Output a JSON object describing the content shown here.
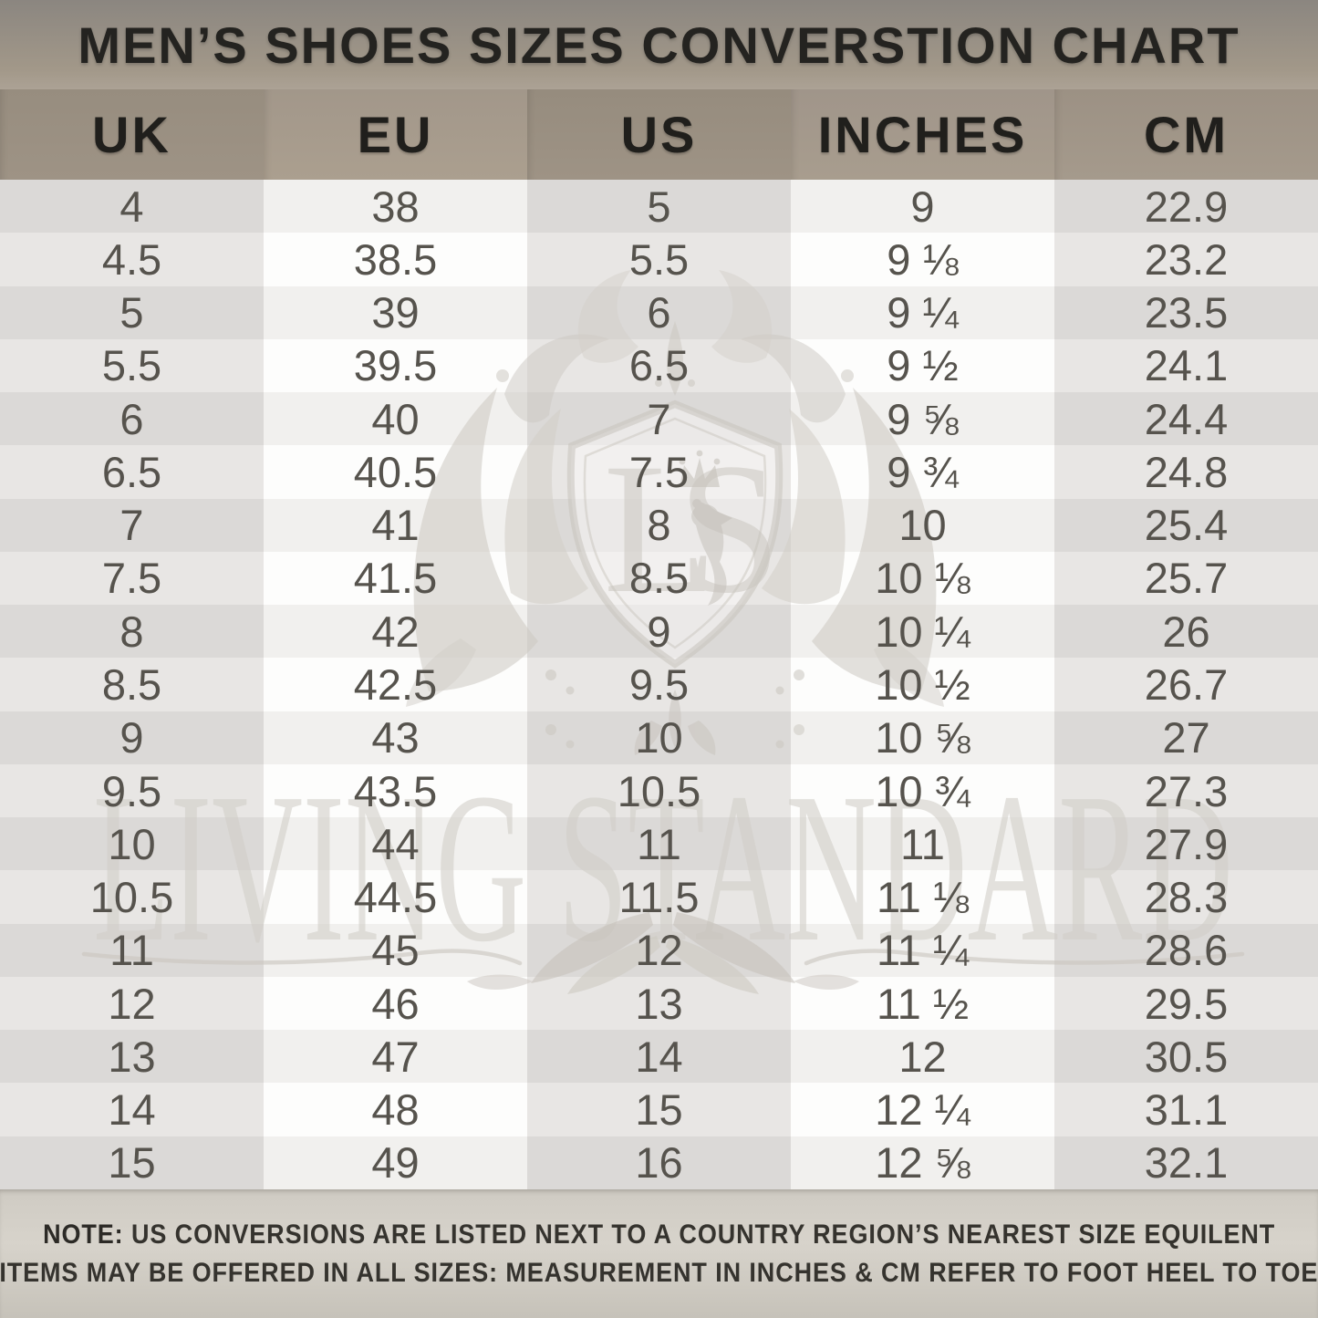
{
  "title": "MEN’S SHOES SIZES CONVERSTION CHART",
  "watermark": {
    "monogram": "LS",
    "brand": "LIVING STANDARD"
  },
  "chart_data": {
    "type": "table",
    "title": "MEN’S SHOES SIZES CONVERSTION CHART",
    "columns": [
      "UK",
      "EU",
      "US",
      "INCHES",
      "CM"
    ],
    "rows": [
      [
        "4",
        "38",
        "5",
        "9",
        "22.9"
      ],
      [
        "4.5",
        "38.5",
        "5.5",
        "9 ⅛",
        "23.2"
      ],
      [
        "5",
        "39",
        "6",
        "9 ¼",
        "23.5"
      ],
      [
        "5.5",
        "39.5",
        "6.5",
        "9 ½",
        "24.1"
      ],
      [
        "6",
        "40",
        "7",
        "9 ⅝",
        "24.4"
      ],
      [
        "6.5",
        "40.5",
        "7.5",
        "9 ¾",
        "24.8"
      ],
      [
        "7",
        "41",
        "8",
        "10",
        "25.4"
      ],
      [
        "7.5",
        "41.5",
        "8.5",
        "10 ⅛",
        "25.7"
      ],
      [
        "8",
        "42",
        "9",
        "10 ¼",
        "26"
      ],
      [
        "8.5",
        "42.5",
        "9.5",
        "10 ½",
        "26.7"
      ],
      [
        "9",
        "43",
        "10",
        "10 ⅝",
        "27"
      ],
      [
        "9.5",
        "43.5",
        "10.5",
        "10 ¾",
        "27.3"
      ],
      [
        "10",
        "44",
        "11",
        "11",
        "27.9"
      ],
      [
        "10.5",
        "44.5",
        "11.5",
        "11 ⅛",
        "28.3"
      ],
      [
        "11",
        "45",
        "12",
        "11 ¼",
        "28.6"
      ],
      [
        "12",
        "46",
        "13",
        "11 ½",
        "29.5"
      ],
      [
        "13",
        "47",
        "14",
        "12",
        "30.5"
      ],
      [
        "14",
        "48",
        "15",
        "12 ¼",
        "31.1"
      ],
      [
        "15",
        "49",
        "16",
        "12 ⅝",
        "32.1"
      ]
    ]
  },
  "footer": {
    "note_label": "NOTE:",
    "line1": " US CONVERSIONS ARE LISTED NEXT TO A COUNTRY REGION’S NEAREST SIZE EQUILENT",
    "line2": "ITEMS MAY BE OFFERED IN ALL SIZES: MEASUREMENT IN INCHES & CM REFER TO FOOT HEEL TO TOE"
  },
  "colors": {
    "title_band_top": "#8b8680",
    "title_band_bottom": "#aca295",
    "header_col_dark": "#978d7f",
    "header_col_light": "#a2978a",
    "row_dark_tint": "#dbd9d7",
    "row_dark_clear": "#f1f0ee",
    "row_light_tint": "#e8e6e4",
    "row_light_clear": "#fdfdfc",
    "body_text": "#56534d",
    "header_text": "#201f1c",
    "footer_bg": "#d0ccc4",
    "footer_text": "#35332e",
    "watermark_gray": "#ccc8c1"
  }
}
